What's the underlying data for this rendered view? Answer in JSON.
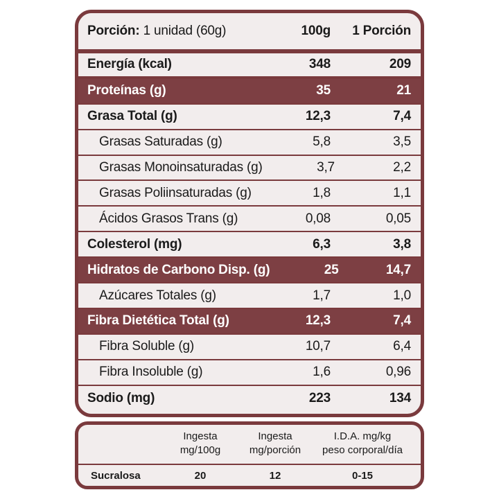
{
  "nutrition": {
    "header": {
      "portion_label": "Porción:",
      "portion_value": "1 unidad (60g)",
      "col1": "100g",
      "col2": "1 Porción"
    },
    "rows": [
      {
        "label": "Energía (kcal)",
        "v100": "348",
        "vportion": "209",
        "style": "bold"
      },
      {
        "label": "Proteínas (g)",
        "v100": "35",
        "vportion": "21",
        "style": "highlight"
      },
      {
        "label": "Grasa Total (g)",
        "v100": "12,3",
        "vportion": "7,4",
        "style": "bold"
      },
      {
        "label": "Grasas Saturadas (g)",
        "v100": "5,8",
        "vportion": "3,5",
        "style": "sub"
      },
      {
        "label": "Grasas Monoinsaturadas (g)",
        "v100": "3,7",
        "vportion": "2,2",
        "style": "sub"
      },
      {
        "label": "Grasas Poliinsaturadas (g)",
        "v100": "1,8",
        "vportion": "1,1",
        "style": "sub"
      },
      {
        "label": "Ácidos Grasos Trans (g)",
        "v100": "0,08",
        "vportion": "0,05",
        "style": "sub"
      },
      {
        "label": "Colesterol (mg)",
        "v100": "6,3",
        "vportion": "3,8",
        "style": "bold"
      },
      {
        "label": "Hidratos de Carbono Disp. (g)",
        "v100": "25",
        "vportion": "14,7",
        "style": "highlight"
      },
      {
        "label": "Azúcares Totales (g)",
        "v100": "1,7",
        "vportion": "1,0",
        "style": "sub"
      },
      {
        "label": "Fibra Dietética Total (g)",
        "v100": "12,3",
        "vportion": "7,4",
        "style": "highlight"
      },
      {
        "label": "Fibra Soluble (g)",
        "v100": "10,7",
        "vportion": "6,4",
        "style": "sub"
      },
      {
        "label": "Fibra Insoluble (g)",
        "v100": "1,6",
        "vportion": "0,96",
        "style": "sub"
      },
      {
        "label": "Sodio (mg)",
        "v100": "223",
        "vportion": "134",
        "style": "bold"
      }
    ]
  },
  "sweetener": {
    "headers": [
      {
        "line1": "Ingesta",
        "line2": "mg/100g"
      },
      {
        "line1": "Ingesta",
        "line2": "mg/porción"
      },
      {
        "line1": "I.D.A. mg/kg",
        "line2": "peso corporal/día"
      }
    ],
    "row": {
      "name": "Sucralosa",
      "v1": "20",
      "v2": "12",
      "v3": "0-15"
    }
  },
  "colors": {
    "border": "#7a3a3d",
    "highlight": "#7d3f43",
    "background": "#f2eded"
  }
}
